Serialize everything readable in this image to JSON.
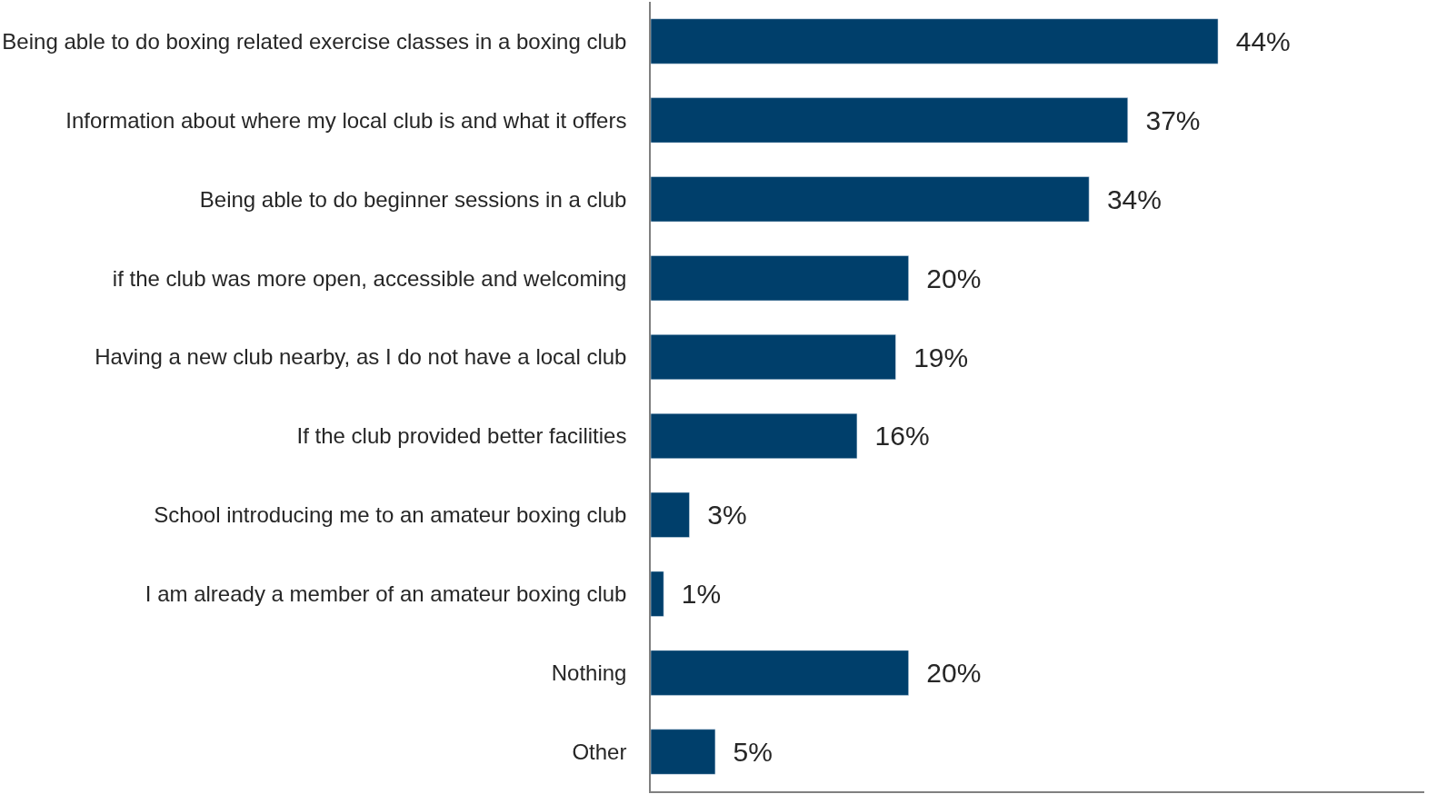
{
  "chart_data": {
    "type": "bar",
    "orientation": "horizontal",
    "categories": [
      "Being able to do boxing related exercise classes in a boxing club",
      "Information about where my local club is and what it offers",
      "Being able to do beginner sessions in a club",
      "if the club was more open, accessible and welcoming",
      "Having a new club nearby, as I do not have a local club",
      "If the club provided better facilities",
      "School introducing me to an amateur boxing club",
      "I am already a member of an amateur boxing club",
      "Nothing",
      "Other"
    ],
    "values": [
      44,
      37,
      34,
      20,
      19,
      16,
      3,
      1,
      20,
      5
    ],
    "value_labels": [
      "44%",
      "37%",
      "34%",
      "20%",
      "19%",
      "16%",
      "3%",
      "1%",
      "20%",
      "5%"
    ],
    "color": "#003f6b",
    "xlim": [
      0,
      60
    ]
  }
}
